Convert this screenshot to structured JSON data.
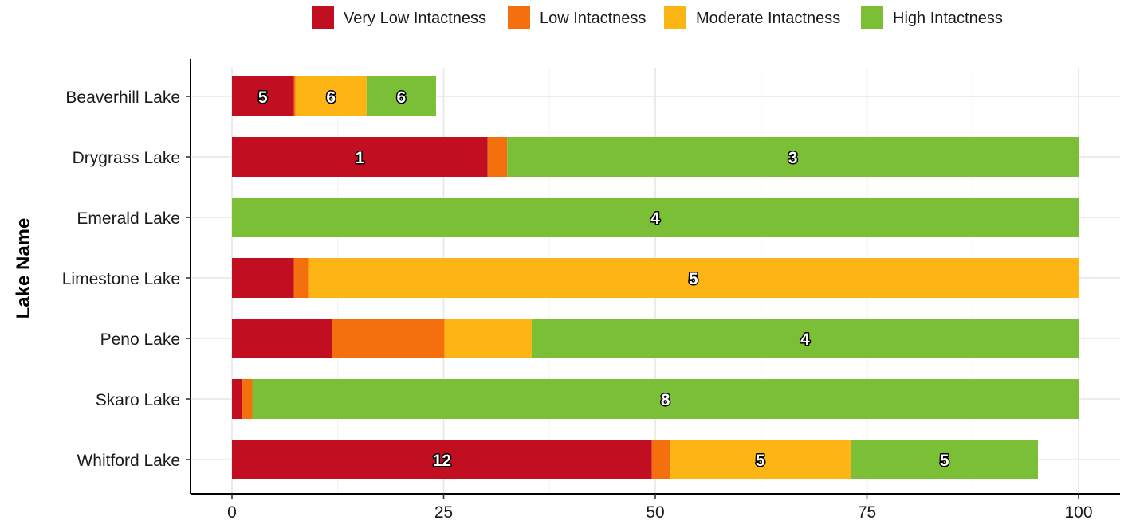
{
  "chart_data": {
    "type": "bar",
    "orientation": "horizontal",
    "stacked": true,
    "title": "",
    "xlabel": "",
    "ylabel": "Lake Name",
    "xlim": [
      0,
      100
    ],
    "x_ticks": [
      0,
      25,
      50,
      75,
      100
    ],
    "grid": true,
    "legend_position": "top",
    "categories": [
      "Beaverhill Lake",
      "Drygrass Lake",
      "Emerald Lake",
      "Limestone Lake",
      "Peno Lake",
      "Skaro Lake",
      "Whitford Lake"
    ],
    "series": [
      {
        "name": "Very Low Intactness",
        "color": "#C20E21",
        "values": [
          7.3,
          30.2,
          0,
          7.3,
          11.8,
          1.2,
          49.6
        ],
        "labels": [
          "5",
          "1",
          "",
          "",
          "",
          "",
          "12"
        ]
      },
      {
        "name": "Low Intactness",
        "color": "#F4700F",
        "values": [
          0.2,
          2.3,
          0,
          1.7,
          13.3,
          1.2,
          2.1
        ],
        "labels": [
          "",
          "",
          "",
          "",
          "",
          "",
          ""
        ]
      },
      {
        "name": "Moderate Intactness",
        "color": "#FDB515",
        "values": [
          8.4,
          0,
          0,
          91.0,
          10.3,
          0,
          21.4
        ],
        "labels": [
          "6",
          "",
          "",
          "5",
          "",
          "",
          "5"
        ]
      },
      {
        "name": "High Intactness",
        "color": "#7BBF36",
        "values": [
          8.2,
          67.5,
          100,
          0,
          64.6,
          97.6,
          22.1
        ],
        "labels": [
          "6",
          "3",
          "4",
          "",
          "4",
          "8",
          "5"
        ]
      }
    ]
  }
}
